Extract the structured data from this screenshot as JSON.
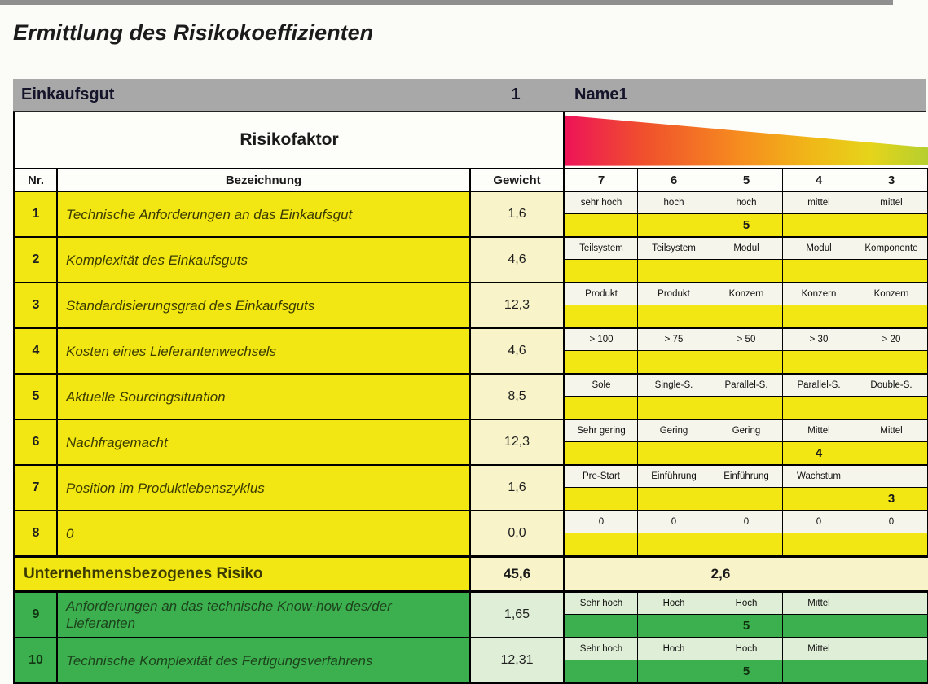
{
  "title": "Ermittlung des Risikokoeffizienten",
  "purchase_header": {
    "label": "Einkaufsgut",
    "number": "1",
    "name": "Name1"
  },
  "table": {
    "section_header": "Risikofaktor",
    "columns": {
      "nr": "Nr.",
      "name": "Bezeichnung",
      "weight": "Gewicht"
    },
    "scale": [
      "7",
      "6",
      "5",
      "4",
      "3"
    ],
    "rows": [
      {
        "nr": "1",
        "section": "yellow",
        "name": "Technische Anforderungen an das Einkaufsgut",
        "weight": "1,6",
        "labels": [
          "sehr hoch",
          "hoch",
          "hoch",
          "mittel",
          "mittel"
        ],
        "value": "5",
        "value_col": 2
      },
      {
        "nr": "2",
        "section": "yellow",
        "name": "Komplexität des Einkaufsguts",
        "weight": "4,6",
        "labels": [
          "Teilsystem",
          "Teilsystem",
          "Modul",
          "Modul",
          "Komponente"
        ],
        "value": "",
        "value_col": -1
      },
      {
        "nr": "3",
        "section": "yellow",
        "name": "Standardisierungsgrad des Einkaufsguts",
        "weight": "12,3",
        "labels": [
          "Produkt",
          "Produkt",
          "Konzern",
          "Konzern",
          "Konzern"
        ],
        "value": "",
        "value_col": -1
      },
      {
        "nr": "4",
        "section": "yellow",
        "name": "Kosten eines Lieferantenwechsels",
        "weight": "4,6",
        "labels": [
          "> 100",
          "> 75",
          "> 50",
          "> 30",
          "> 20"
        ],
        "value": "",
        "value_col": -1
      },
      {
        "nr": "5",
        "section": "yellow",
        "name": "Aktuelle Sourcingsituation",
        "weight": "8,5",
        "labels": [
          "Sole",
          "Single-S.",
          "Parallel-S.",
          "Parallel-S.",
          "Double-S."
        ],
        "value": "",
        "value_col": -1
      },
      {
        "nr": "6",
        "section": "yellow",
        "name": "Nachfragemacht",
        "weight": "12,3",
        "labels": [
          "Sehr gering",
          "Gering",
          "Gering",
          "Mittel",
          "Mittel"
        ],
        "value": "4",
        "value_col": 3
      },
      {
        "nr": "7",
        "section": "yellow",
        "name": "Position im Produktlebenszyklus",
        "weight": "1,6",
        "labels": [
          "Pre-Start",
          "Einführung",
          "Einführung",
          "Wachstum",
          ""
        ],
        "value": "3",
        "value_col": 4
      },
      {
        "nr": "8",
        "section": "yellow",
        "name": "0",
        "weight": "0,0",
        "labels": [
          "0",
          "0",
          "0",
          "0",
          "0"
        ],
        "value": "",
        "value_col": -1
      },
      {
        "nr": "9",
        "section": "green",
        "name": "Anforderungen an das technische Know-how des/der Lieferanten",
        "weight": "1,65",
        "labels": [
          "Sehr hoch",
          "Hoch",
          "Hoch",
          "Mittel",
          ""
        ],
        "value": "5",
        "value_col": 2
      },
      {
        "nr": "10",
        "section": "green",
        "name": "Technische Komplexität des Fertigungsverfahrens",
        "weight": "12,31",
        "labels": [
          "Sehr hoch",
          "Hoch",
          "Hoch",
          "Mittel",
          ""
        ],
        "value": "5",
        "value_col": 2
      }
    ],
    "summary": {
      "label": "Unternehmensbezogenes Risiko",
      "weight": "45,6",
      "value": "2,6"
    }
  },
  "colors": {
    "band_gray": "#a8a8a8",
    "yellow": "#f2e713",
    "pale_yellow": "#f8f3c8",
    "green": "#3cb04f",
    "pale_green": "#dfeed6",
    "label_bg": "#f5f5ec",
    "border": "#000000",
    "gradient_left": "#ee1458",
    "gradient_mid": "#f68c1f",
    "gradient_right": "#b6cf2e",
    "title_text": "#1b1b1b",
    "yellow_text": "#3b3b00",
    "green_text": "#1d431d"
  }
}
